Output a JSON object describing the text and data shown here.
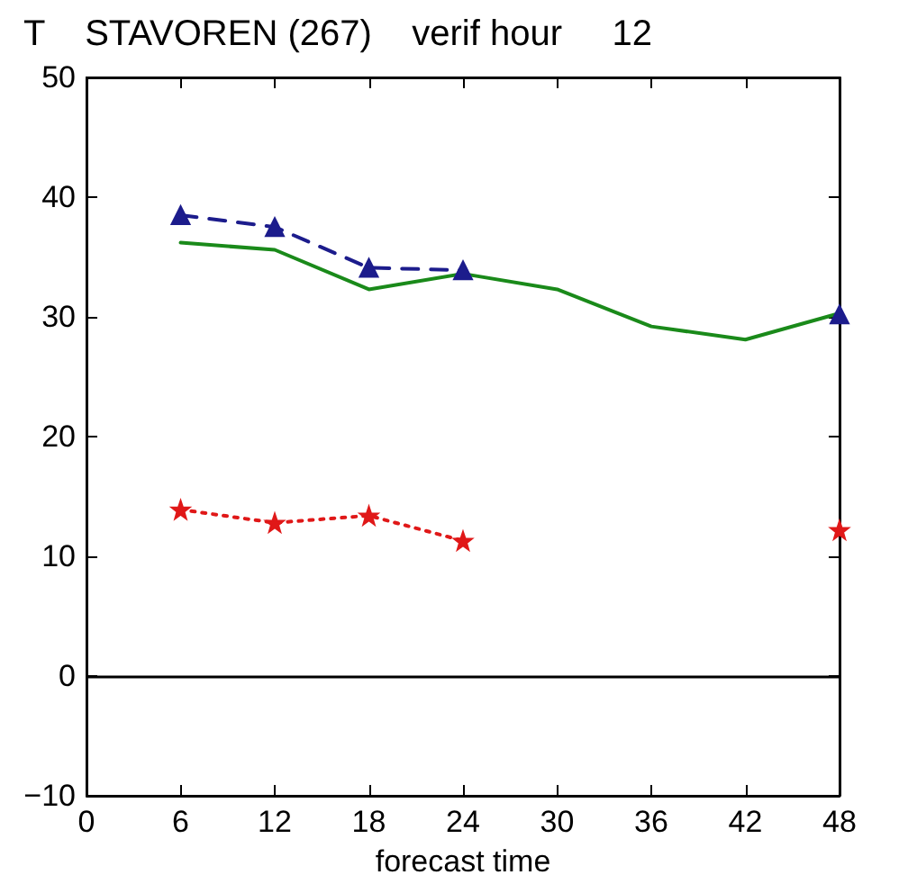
{
  "chart_data": {
    "type": "line",
    "title": "T    STAVOREN (267)    verif hour     12",
    "xlabel": "forecast time",
    "x": [
      6,
      12,
      18,
      24,
      30,
      36,
      42,
      48
    ],
    "series": [
      {
        "color": "#1a8a1a",
        "values": [
          36.2,
          35.6,
          32.3,
          33.6,
          32.3,
          29.2,
          28.1,
          30.3
        ],
        "marker": "none",
        "line_style": "solid"
      },
      {
        "color": "#1c1c8c",
        "values": [
          38.5,
          37.5,
          34.1,
          33.9,
          null,
          null,
          null,
          30.2
        ],
        "marker": "triangle",
        "line_style": "dashed"
      },
      {
        "color": "#e01818",
        "values": [
          13.9,
          12.8,
          13.4,
          11.3,
          null,
          null,
          null,
          12.2
        ],
        "marker": "star",
        "line_style": "dotted"
      }
    ],
    "xlim": [
      0,
      48
    ],
    "xticks": [
      0,
      6,
      12,
      18,
      24,
      30,
      36,
      42,
      48
    ],
    "ylim": [
      -10,
      50
    ],
    "yticks": [
      -10,
      0,
      10,
      20,
      30,
      40,
      50
    ],
    "ref_lines": [
      {
        "axis": "y",
        "value": 0,
        "color": "#000000"
      }
    ],
    "grid": false
  }
}
